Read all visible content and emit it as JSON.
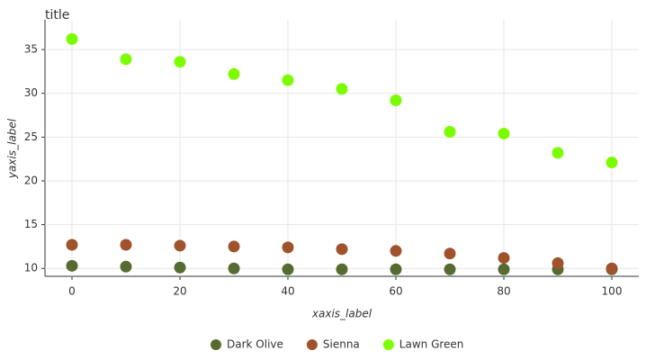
{
  "chart_data": {
    "type": "scatter",
    "title": "title",
    "x_label": "xaxis_label",
    "y_label": "yaxis_label",
    "x": [
      0,
      10,
      20,
      30,
      40,
      50,
      60,
      70,
      80,
      90,
      100
    ],
    "series": [
      {
        "name": "Dark Olive",
        "color": "#556b2f",
        "values": [
          10.3,
          10.2,
          10.1,
          10.0,
          9.9,
          9.9,
          9.9,
          9.9,
          9.9,
          9.9,
          9.9
        ]
      },
      {
        "name": "Sienna",
        "color": "#a0522d",
        "values": [
          12.7,
          12.7,
          12.6,
          12.5,
          12.4,
          12.2,
          12.0,
          11.7,
          11.2,
          10.6,
          10.0
        ]
      },
      {
        "name": "Lawn Green",
        "color": "#7cfc00",
        "values": [
          36.2,
          33.9,
          33.6,
          32.2,
          31.5,
          30.5,
          29.2,
          25.6,
          25.4,
          23.2,
          22.1
        ]
      }
    ],
    "xlim": [
      -5,
      105
    ],
    "ylim": [
      9.1,
      38.4
    ],
    "xticks": [
      0,
      20,
      40,
      60,
      80,
      100
    ],
    "yticks": [
      10,
      15,
      20,
      25,
      30,
      35
    ],
    "grid": true
  }
}
